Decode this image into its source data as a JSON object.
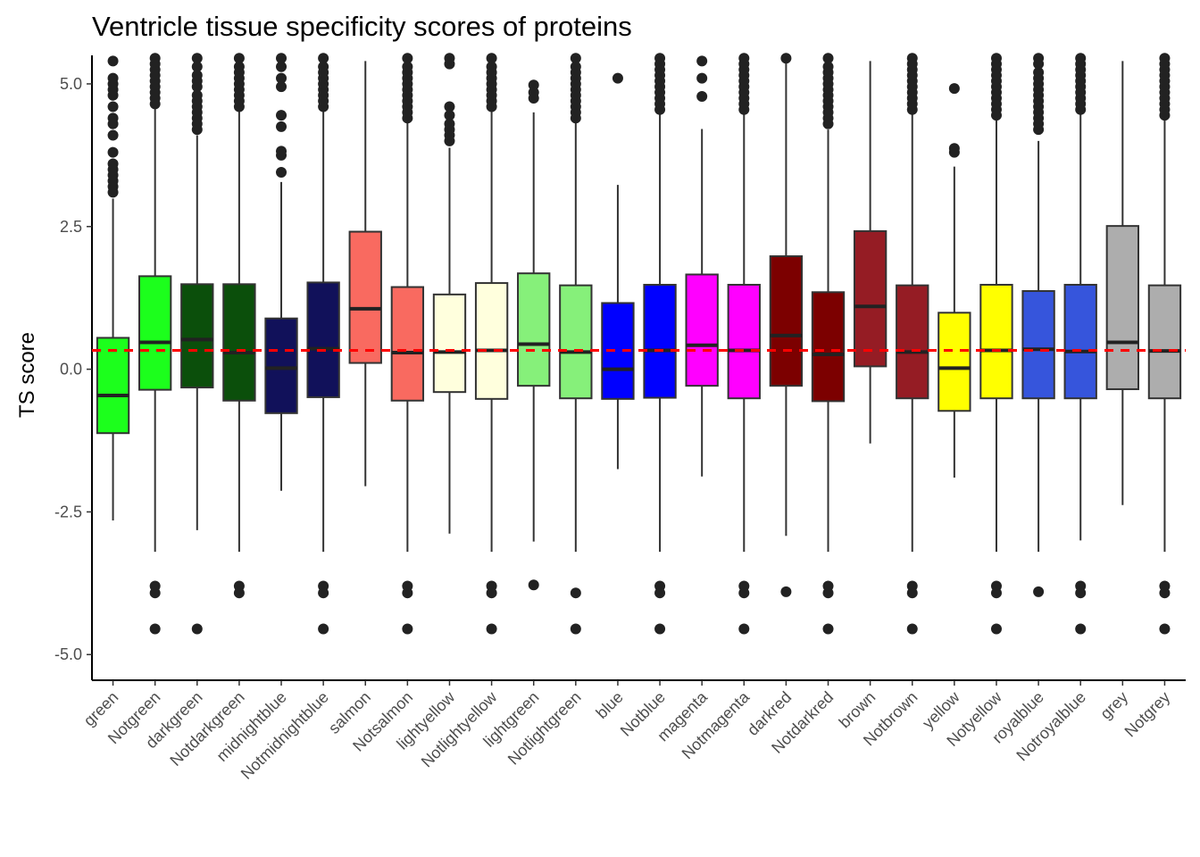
{
  "chart_data": {
    "type": "box",
    "title": "Ventricle tissue specificity scores of proteins",
    "xlabel": "",
    "ylabel": "TS score",
    "ylim": [
      -5.45,
      5.5
    ],
    "yticks": [
      -5.0,
      -2.5,
      0.0,
      2.5,
      5.0
    ],
    "ytick_labels": [
      "-5.0",
      "-2.5",
      "0.0",
      "2.5",
      "5.0"
    ],
    "reference_line": {
      "y": 0.33,
      "color": "#ff0000",
      "style": "dashed"
    },
    "grid": false,
    "box_stroke": "#333333",
    "outlier_color": "#222222",
    "categories": [
      {
        "name": "green",
        "fill": "#1cff1c",
        "q1": -1.12,
        "median": -0.46,
        "q3": 0.55,
        "whisker_low": -2.65,
        "whisker_high": 2.99,
        "outliers": [
          3.1,
          3.2,
          3.3,
          3.4,
          3.5,
          3.6,
          3.8,
          4.1,
          4.3,
          4.4,
          4.6,
          4.8,
          4.9,
          5.0,
          5.1,
          5.4
        ]
      },
      {
        "name": "Notgreen",
        "fill": "#1cff1c",
        "q1": -0.36,
        "median": 0.47,
        "q3": 1.63,
        "whisker_low": -3.2,
        "whisker_high": 4.6,
        "outliers": [
          -3.8,
          -3.92,
          -4.55,
          4.65,
          4.75,
          4.85,
          4.95,
          5.05,
          5.15,
          5.25,
          5.35,
          5.45
        ]
      },
      {
        "name": "darkgreen",
        "fill": "#0b4f0b",
        "q1": -0.32,
        "median": 0.52,
        "q3": 1.49,
        "whisker_low": -2.82,
        "whisker_high": 4.1,
        "outliers": [
          -4.55,
          4.2,
          4.3,
          4.4,
          4.5,
          4.6,
          4.7,
          4.8,
          4.95,
          5.05,
          5.15,
          5.3,
          5.45
        ]
      },
      {
        "name": "Notdarkgreen",
        "fill": "#0b4f0b",
        "q1": -0.55,
        "median": 0.29,
        "q3": 1.49,
        "whisker_low": -3.2,
        "whisker_high": 4.55,
        "outliers": [
          -3.8,
          -3.92,
          4.6,
          4.7,
          4.8,
          4.9,
          5.0,
          5.1,
          5.2,
          5.3,
          5.45
        ]
      },
      {
        "name": "midnightblue",
        "fill": "#11115a",
        "q1": -0.77,
        "median": 0.02,
        "q3": 0.89,
        "whisker_low": -2.13,
        "whisker_high": 3.28,
        "outliers": [
          3.45,
          3.75,
          3.82,
          4.25,
          4.45,
          4.95,
          5.1,
          5.3,
          5.45
        ]
      },
      {
        "name": "Notmidnightblue",
        "fill": "#11115a",
        "q1": -0.49,
        "median": 0.36,
        "q3": 1.52,
        "whisker_low": -3.2,
        "whisker_high": 4.55,
        "outliers": [
          -3.8,
          -3.92,
          -4.55,
          4.6,
          4.7,
          4.8,
          4.9,
          5.0,
          5.1,
          5.2,
          5.3,
          5.45
        ]
      },
      {
        "name": "salmon",
        "fill": "#f96a60",
        "q1": 0.11,
        "median": 1.06,
        "q3": 2.41,
        "whisker_low": -2.05,
        "whisker_high": 5.4,
        "outliers": []
      },
      {
        "name": "Notsalmon",
        "fill": "#f96a60",
        "q1": -0.55,
        "median": 0.29,
        "q3": 1.44,
        "whisker_low": -3.2,
        "whisker_high": 4.35,
        "outliers": [
          -3.8,
          -3.92,
          -4.55,
          4.4,
          4.5,
          4.6,
          4.7,
          4.8,
          4.9,
          5.0,
          5.1,
          5.2,
          5.3,
          5.45
        ]
      },
      {
        "name": "lightyellow",
        "fill": "#ffffdd",
        "q1": -0.4,
        "median": 0.3,
        "q3": 1.31,
        "whisker_low": -2.88,
        "whisker_high": 3.88,
        "outliers": [
          4.0,
          4.1,
          4.2,
          4.3,
          4.45,
          4.6,
          5.35,
          5.45
        ]
      },
      {
        "name": "Notlightyellow",
        "fill": "#ffffdd",
        "q1": -0.52,
        "median": 0.33,
        "q3": 1.51,
        "whisker_low": -3.2,
        "whisker_high": 4.55,
        "outliers": [
          -3.8,
          -3.92,
          -4.55,
          4.6,
          4.7,
          4.8,
          4.9,
          5.0,
          5.1,
          5.2,
          5.3,
          5.45
        ]
      },
      {
        "name": "lightgreen",
        "fill": "#86f07a",
        "q1": -0.29,
        "median": 0.44,
        "q3": 1.68,
        "whisker_low": -3.02,
        "whisker_high": 4.5,
        "outliers": [
          -3.78,
          4.75,
          4.85,
          4.98
        ]
      },
      {
        "name": "Notlightgreen",
        "fill": "#86f07a",
        "q1": -0.51,
        "median": 0.3,
        "q3": 1.47,
        "whisker_low": -3.2,
        "whisker_high": 4.35,
        "outliers": [
          -3.92,
          -4.55,
          4.4,
          4.5,
          4.6,
          4.7,
          4.8,
          4.9,
          5.0,
          5.1,
          5.2,
          5.3,
          5.45
        ]
      },
      {
        "name": "blue",
        "fill": "#0000ff",
        "q1": -0.52,
        "median": 0.0,
        "q3": 1.16,
        "whisker_low": -1.75,
        "whisker_high": 3.23,
        "outliers": [
          5.1
        ]
      },
      {
        "name": "Notblue",
        "fill": "#0000ff",
        "q1": -0.5,
        "median": 0.33,
        "q3": 1.48,
        "whisker_low": -3.2,
        "whisker_high": 4.5,
        "outliers": [
          -3.8,
          -3.92,
          -4.55,
          4.55,
          4.65,
          4.75,
          4.85,
          4.95,
          5.05,
          5.15,
          5.25,
          5.35,
          5.45
        ]
      },
      {
        "name": "magenta",
        "fill": "#ff00ff",
        "q1": -0.29,
        "median": 0.42,
        "q3": 1.66,
        "whisker_low": -1.88,
        "whisker_high": 4.21,
        "outliers": [
          4.78,
          5.1,
          5.4
        ]
      },
      {
        "name": "Notmagenta",
        "fill": "#ff00ff",
        "q1": -0.51,
        "median": 0.33,
        "q3": 1.48,
        "whisker_low": -3.2,
        "whisker_high": 4.5,
        "outliers": [
          -3.8,
          -3.92,
          -4.55,
          4.55,
          4.65,
          4.75,
          4.85,
          4.95,
          5.05,
          5.15,
          5.25,
          5.35,
          5.45
        ]
      },
      {
        "name": "darkred",
        "fill": "#7c0000",
        "q1": -0.29,
        "median": 0.59,
        "q3": 1.98,
        "whisker_low": -2.92,
        "whisker_high": 5.4,
        "outliers": [
          -3.9,
          5.45
        ]
      },
      {
        "name": "Notdarkred",
        "fill": "#7c0000",
        "q1": -0.56,
        "median": 0.26,
        "q3": 1.35,
        "whisker_low": -3.2,
        "whisker_high": 4.2,
        "outliers": [
          -3.8,
          -3.92,
          -4.55,
          4.3,
          4.4,
          4.5,
          4.6,
          4.7,
          4.8,
          4.9,
          5.0,
          5.1,
          5.2,
          5.3,
          5.45
        ]
      },
      {
        "name": "brown",
        "fill": "#951c24",
        "q1": 0.05,
        "median": 1.1,
        "q3": 2.42,
        "whisker_low": -1.3,
        "whisker_high": 5.4,
        "outliers": []
      },
      {
        "name": "Notbrown",
        "fill": "#951c24",
        "q1": -0.51,
        "median": 0.3,
        "q3": 1.47,
        "whisker_low": -3.2,
        "whisker_high": 4.5,
        "outliers": [
          -3.8,
          -3.92,
          -4.55,
          4.55,
          4.65,
          4.75,
          4.85,
          4.95,
          5.05,
          5.15,
          5.25,
          5.35,
          5.45
        ]
      },
      {
        "name": "yellow",
        "fill": "#ffff00",
        "q1": -0.73,
        "median": 0.02,
        "q3": 0.99,
        "whisker_low": -1.9,
        "whisker_high": 3.55,
        "outliers": [
          3.8,
          3.87,
          4.92
        ]
      },
      {
        "name": "Notyellow",
        "fill": "#ffff00",
        "q1": -0.51,
        "median": 0.33,
        "q3": 1.48,
        "whisker_low": -3.2,
        "whisker_high": 4.4,
        "outliers": [
          -3.8,
          -3.92,
          -4.55,
          4.45,
          4.55,
          4.65,
          4.75,
          4.85,
          4.95,
          5.05,
          5.15,
          5.25,
          5.35,
          5.45
        ]
      },
      {
        "name": "royalblue",
        "fill": "#3655dc",
        "q1": -0.51,
        "median": 0.35,
        "q3": 1.37,
        "whisker_low": -3.2,
        "whisker_high": 4.0,
        "outliers": [
          -3.9,
          4.2,
          4.3,
          4.4,
          4.5,
          4.6,
          4.7,
          4.8,
          4.9,
          5.0,
          5.1,
          5.2,
          5.35,
          5.45
        ]
      },
      {
        "name": "Notroyalblue",
        "fill": "#3655dc",
        "q1": -0.51,
        "median": 0.31,
        "q3": 1.48,
        "whisker_low": -3.0,
        "whisker_high": 4.5,
        "outliers": [
          -3.8,
          -3.92,
          -4.55,
          4.55,
          4.65,
          4.75,
          4.85,
          4.95,
          5.05,
          5.15,
          5.25,
          5.35,
          5.45
        ]
      },
      {
        "name": "grey",
        "fill": "#adadad",
        "q1": -0.35,
        "median": 0.47,
        "q3": 2.51,
        "whisker_low": -2.38,
        "whisker_high": 5.4,
        "outliers": []
      },
      {
        "name": "Notgrey",
        "fill": "#adadad",
        "q1": -0.51,
        "median": 0.32,
        "q3": 1.47,
        "whisker_low": -3.2,
        "whisker_high": 4.4,
        "outliers": [
          -3.8,
          -3.92,
          -4.55,
          4.45,
          4.55,
          4.65,
          4.75,
          4.85,
          4.95,
          5.05,
          5.15,
          5.25,
          5.35,
          5.45
        ]
      }
    ]
  }
}
